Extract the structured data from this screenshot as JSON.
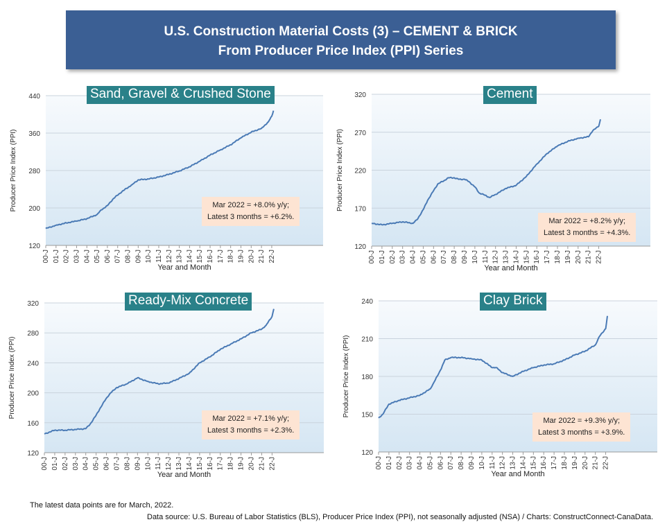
{
  "banner": {
    "line1": "U.S. Construction Material Costs (3) – CEMENT & BRICK",
    "line2": "From Producer Price Index (PPI) Series"
  },
  "footnote": "The latest data points are for March, 2022.",
  "source": "Data source: U.S. Bureau of Labor Statistics (BLS), Producer Price Index (PPI), not seasonally adjusted (NSA) / Charts: ConstructConnect-CanaData.",
  "colors": {
    "line": "#4a7ab5",
    "title_bg": "#2a8189",
    "annotation_bg": "#fde4d3",
    "banner_bg": "#3b5f94"
  },
  "chart_data": [
    {
      "type": "line",
      "title": "Sand, Gravel & Crushed Stone",
      "xlabel": "Year and Month",
      "ylabel": "Producer Price Index (PPI)",
      "ylim": [
        120,
        440
      ],
      "yticks": [
        120,
        200,
        280,
        360,
        440
      ],
      "xticks": [
        "00-J",
        "01-J",
        "02-J",
        "03-J",
        "04-J",
        "05-J",
        "06-J",
        "07-J",
        "08-J",
        "09-J",
        "10-J",
        "11-J",
        "12-J",
        "13-J",
        "14-J",
        "15-J",
        "16-J",
        "17-J",
        "18-J",
        "19-J",
        "20-J",
        "21-J",
        "22-J"
      ],
      "annotation": [
        "Mar 2022 = +8.0% y/y;",
        "Latest 3 months = +6.2%."
      ],
      "series": [
        {
          "x": [
            "2000-01",
            "2001-01",
            "2002-01",
            "2003-01",
            "2004-01",
            "2005-01",
            "2005-06",
            "2006-01",
            "2006-08",
            "2007-06",
            "2008-06",
            "2009-01",
            "2010-01",
            "2011-01",
            "2012-01",
            "2013-01",
            "2014-01",
            "2015-01",
            "2016-01",
            "2017-01",
            "2018-01",
            "2019-01",
            "2020-01",
            "2021-01",
            "2021-09",
            "2022-01",
            "2022-03"
          ],
          "values": [
            156,
            163,
            168,
            172,
            177,
            186,
            196,
            205,
            220,
            235,
            250,
            260,
            262,
            266,
            272,
            279,
            288,
            300,
            313,
            324,
            335,
            350,
            362,
            370,
            384,
            396,
            408
          ]
        }
      ]
    },
    {
      "type": "line",
      "title": "Cement",
      "xlabel": "Year and Month",
      "ylabel": "Producer Price Index (PPI)",
      "ylim": [
        120,
        320
      ],
      "yticks": [
        120,
        170,
        220,
        270,
        320
      ],
      "xticks": [
        "00-J",
        "01-J",
        "02-J",
        "03-J",
        "04-J",
        "05-J",
        "06-J",
        "07-J",
        "08-J",
        "09-J",
        "10-J",
        "11-J",
        "12-J",
        "13-J",
        "14-J",
        "15-J",
        "16-J",
        "17-J",
        "18-J",
        "19-J",
        "20-J",
        "21-J",
        "22-J"
      ],
      "annotation": [
        "Mar 2022 = +8.2% y/y;",
        "Latest 3 months = +4.3%."
      ],
      "series": [
        {
          "x": [
            "2000-01",
            "2001-01",
            "2002-01",
            "2003-01",
            "2004-01",
            "2004-06",
            "2005-01",
            "2005-06",
            "2006-01",
            "2006-06",
            "2007-01",
            "2007-06",
            "2008-01",
            "2008-06",
            "2009-01",
            "2009-06",
            "2010-01",
            "2010-06",
            "2011-01",
            "2011-06",
            "2012-01",
            "2013-01",
            "2014-01",
            "2015-01",
            "2016-01",
            "2017-01",
            "2018-01",
            "2019-01",
            "2020-01",
            "2021-01",
            "2021-06",
            "2022-01",
            "2022-03"
          ],
          "values": [
            150,
            148,
            150,
            152,
            150,
            155,
            168,
            180,
            193,
            202,
            206,
            210,
            210,
            208,
            208,
            205,
            198,
            190,
            187,
            184,
            188,
            196,
            200,
            212,
            228,
            242,
            252,
            258,
            262,
            264,
            272,
            278,
            287
          ]
        }
      ]
    },
    {
      "type": "line",
      "title": "Ready-Mix Concrete",
      "xlabel": "Year and Month",
      "ylabel": "Producer Price Index (PPI)",
      "ylim": [
        120,
        320
      ],
      "yticks": [
        120,
        160,
        200,
        240,
        280,
        320
      ],
      "xticks": [
        "00-J",
        "01-J",
        "02-J",
        "03-J",
        "04-J",
        "05-J",
        "06-J",
        "07-J",
        "08-J",
        "09-J",
        "10-J",
        "11-J",
        "12-J",
        "13-J",
        "14-J",
        "15-J",
        "16-J",
        "17-J",
        "18-J",
        "19-J",
        "20-J",
        "21-J",
        "22-J"
      ],
      "annotation": [
        "Mar 2022 = +7.1% y/y;",
        "Latest 3 months = +2.3%."
      ],
      "series": [
        {
          "x": [
            "2000-01",
            "2001-01",
            "2002-01",
            "2003-01",
            "2004-01",
            "2004-06",
            "2005-01",
            "2005-06",
            "2006-01",
            "2006-06",
            "2007-01",
            "2008-01",
            "2009-01",
            "2010-01",
            "2011-01",
            "2012-01",
            "2013-01",
            "2014-01",
            "2015-01",
            "2016-01",
            "2017-01",
            "2018-01",
            "2019-01",
            "2020-01",
            "2021-01",
            "2021-06",
            "2022-01",
            "2022-03"
          ],
          "values": [
            145,
            150,
            150,
            151,
            152,
            158,
            170,
            180,
            193,
            200,
            207,
            212,
            220,
            215,
            212,
            213,
            219,
            226,
            240,
            248,
            258,
            265,
            272,
            280,
            285,
            290,
            302,
            312
          ]
        }
      ]
    },
    {
      "type": "line",
      "title": "Clay Brick",
      "xlabel": "Year and Month",
      "ylabel": "Producer Price Index (PPI)",
      "ylim": [
        120,
        240
      ],
      "yticks": [
        120,
        150,
        180,
        210,
        240
      ],
      "xticks": [
        "00-J",
        "01-J",
        "02-J",
        "03-J",
        "04-J",
        "05-J",
        "06-J",
        "07-J",
        "08-J",
        "09-J",
        "10-J",
        "11-J",
        "12-J",
        "13-J",
        "14-J",
        "15-J",
        "16-J",
        "17-J",
        "18-J",
        "19-J",
        "20-J",
        "21-J",
        "22-J"
      ],
      "annotation": [
        "Mar 2022 = +9.3% y/y;",
        "Latest 3 months = +3.9%."
      ],
      "series": [
        {
          "x": [
            "2000-01",
            "2000-06",
            "2001-01",
            "2002-01",
            "2003-01",
            "2004-01",
            "2005-01",
            "2005-06",
            "2006-01",
            "2006-06",
            "2007-01",
            "2008-01",
            "2009-01",
            "2010-01",
            "2011-01",
            "2011-06",
            "2012-01",
            "2013-01",
            "2014-01",
            "2015-01",
            "2016-01",
            "2017-01",
            "2018-01",
            "2019-01",
            "2020-01",
            "2021-01",
            "2021-06",
            "2022-01",
            "2022-03"
          ],
          "values": [
            147,
            150,
            158,
            161,
            163,
            165,
            170,
            176,
            185,
            193,
            195,
            195,
            194,
            193,
            187,
            187,
            183,
            180,
            184,
            187,
            189,
            190,
            193,
            197,
            200,
            205,
            212,
            218,
            228
          ]
        }
      ]
    }
  ]
}
